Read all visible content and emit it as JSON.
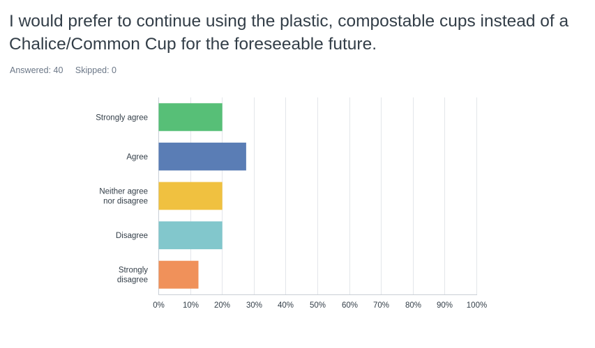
{
  "question": {
    "title": "I would prefer to continue using the plastic, compostable cups instead of a Chalice/Common Cup for the foreseeable future."
  },
  "stats": {
    "answered": "Answered: 40",
    "skipped": "Skipped: 0"
  },
  "chart_data": {
    "type": "bar",
    "orientation": "horizontal",
    "title": "I would prefer to continue using the plastic, compostable cups instead of a Chalice/Common Cup for the foreseeable future.",
    "categories": [
      [
        "Strongly agree"
      ],
      [
        "Agree"
      ],
      [
        "Neither agree",
        "nor disagree"
      ],
      [
        "Disagree"
      ],
      [
        "Strongly",
        "disagree"
      ]
    ],
    "values": [
      20,
      27.5,
      20,
      20,
      12.5
    ],
    "colors": [
      "#57bf77",
      "#5a7db5",
      "#f0c140",
      "#82c7cc",
      "#f0915a"
    ],
    "xlim": [
      0,
      100
    ],
    "xticks": [
      "0%",
      "10%",
      "20%",
      "30%",
      "40%",
      "50%",
      "60%",
      "70%",
      "80%",
      "90%",
      "100%"
    ],
    "xlabel": "",
    "ylabel": "",
    "grid": true,
    "unit": "%"
  }
}
